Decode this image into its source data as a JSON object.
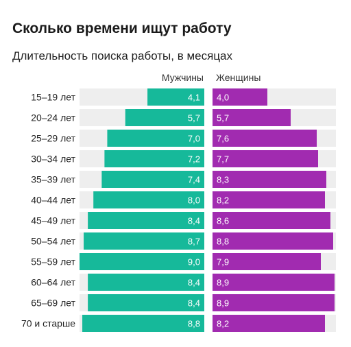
{
  "title": "Сколько времени ищут работу",
  "subtitle": "Длительность поиска работы, в месяцах",
  "colors": {
    "men": "#16b99a",
    "women": "#a12bb0",
    "track": "#eeeeee"
  },
  "chart_data": {
    "type": "bar",
    "orientation": "horizontal-diverging",
    "title": "Сколько времени ищут работу",
    "subtitle": "Длительность поиска работы, в месяцах",
    "categories": [
      "15–19 лет",
      "20–24 лет",
      "25–29 лет",
      "30–34 лет",
      "35–39 лет",
      "40–44 лет",
      "45–49 лет",
      "50–54 лет",
      "55–59 лет",
      "60–64 лет",
      "65–69 лет",
      "70 и старше"
    ],
    "series": [
      {
        "name": "Мужчины",
        "values": [
          4.1,
          5.7,
          7.0,
          7.2,
          7.4,
          8.0,
          8.4,
          8.7,
          9.0,
          8.4,
          8.4,
          8.8
        ],
        "labels": [
          "4,1",
          "5,7",
          "7,0",
          "7,2",
          "7,4",
          "8,0",
          "8,4",
          "8,7",
          "9,0",
          "8,4",
          "8,4",
          "8,8"
        ]
      },
      {
        "name": "Женщины",
        "values": [
          4.0,
          5.7,
          7.6,
          7.7,
          8.3,
          8.2,
          8.6,
          8.8,
          7.9,
          8.9,
          8.9,
          8.2
        ],
        "labels": [
          "4,0",
          "5,7",
          "7,6",
          "7,7",
          "8,3",
          "8,2",
          "8,6",
          "8,8",
          "7,9",
          "8,9",
          "8,9",
          "8,2"
        ]
      }
    ],
    "xlim": [
      0,
      9
    ],
    "grid": false,
    "legend": "top"
  }
}
